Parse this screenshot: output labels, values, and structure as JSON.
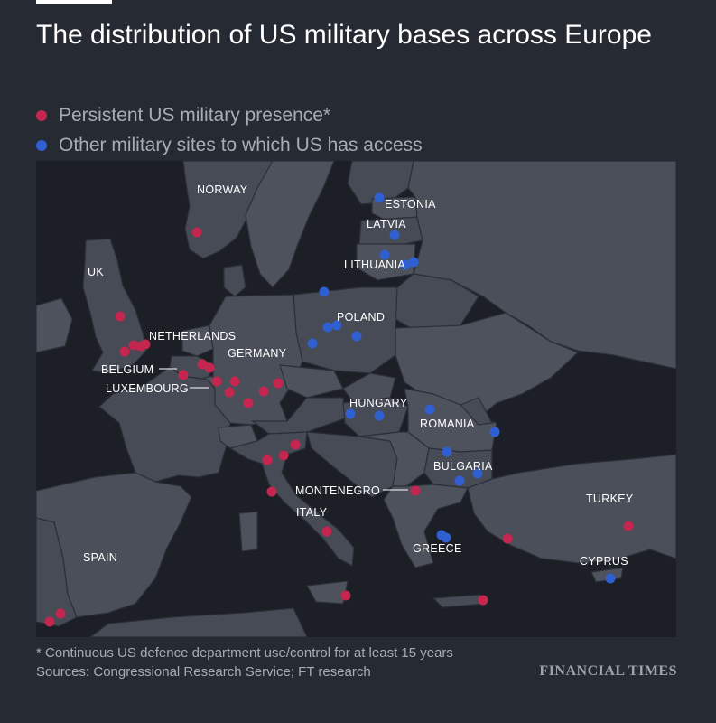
{
  "title": "The distribution of US military bases across Europe",
  "legend": {
    "persistent": {
      "label": "Persistent US military presence*",
      "color": "#c4264f"
    },
    "other": {
      "label": "Other military sites to which US has access",
      "color": "#2f5fd0"
    }
  },
  "labels": {
    "norway": "NORWAY",
    "estonia": "ESTONIA",
    "latvia": "LATVIA",
    "lithuania": "LITHUANIA",
    "uk": "UK",
    "poland": "POLAND",
    "netherlands": "NETHERLANDS",
    "germany": "GERMANY",
    "belgium": "BELGIUM",
    "luxembourg": "LUXEMBOURG",
    "hungary": "HUNGARY",
    "romania": "ROMANIA",
    "bulgaria": "BULGARIA",
    "montenegro": "MONTENEGRO",
    "turkey": "TURKEY",
    "italy": "ITALY",
    "greece": "GREECE",
    "spain": "SPAIN",
    "cyprus": "CYPRUS"
  },
  "footnote": "* Continuous US defence department use/control for at least 15 years",
  "sources": "Sources: Congressional Research Service; FT research",
  "logo": "FINANCIAL TIMES",
  "colors": {
    "background": "#262a33",
    "land": "#464b55",
    "sea": "#1c1f26",
    "border": "#262a33"
  }
}
